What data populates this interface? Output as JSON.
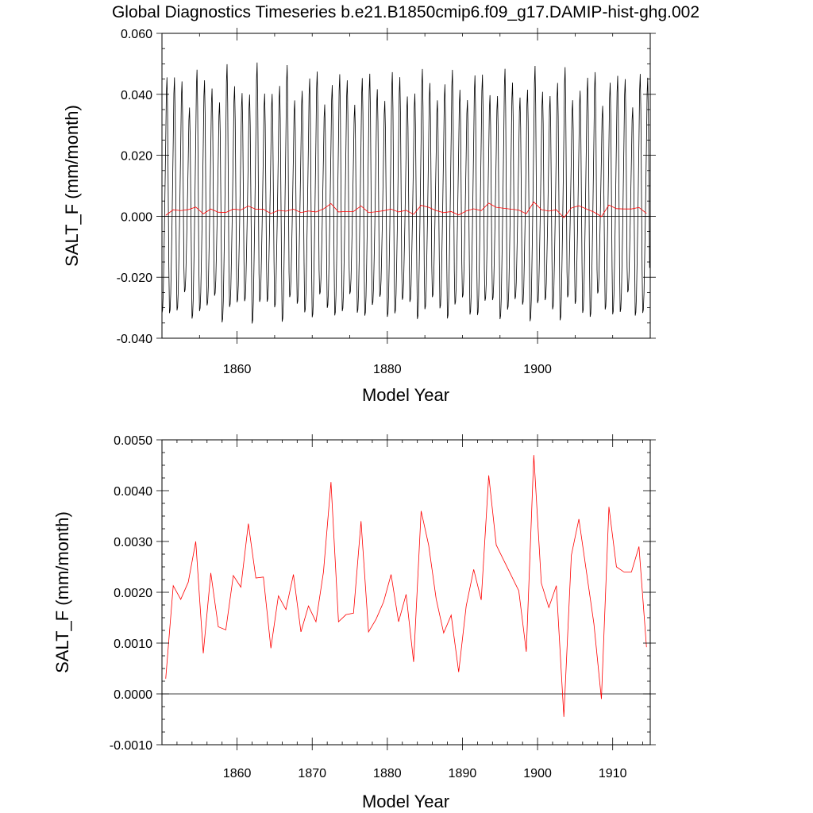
{
  "title": "Global Diagnostics Timeseries b.e21.B1850cmip6.f09_g17.DAMIP-hist-ghg.002",
  "colors": {
    "monthly": "#000000",
    "annual": "#ff0000",
    "zero_line": "#000000"
  },
  "chart_data": [
    {
      "type": "line",
      "xlabel": "Model Year",
      "ylabel": "SALT_F (mm/month)",
      "xlim": [
        1850,
        1915
      ],
      "ylim": [
        -0.04,
        0.06
      ],
      "xticks": [
        1860,
        1880,
        1900
      ],
      "xtick_labels": [
        "1860",
        "1880",
        "1900"
      ],
      "yticks": [
        -0.04,
        -0.02,
        0,
        0.02,
        0.04,
        0.06
      ],
      "ytick_labels": [
        "-0.040",
        "-0.020",
        "0.000",
        "0.020",
        "0.040",
        "0.060"
      ],
      "zero_line": 0,
      "series": [
        {
          "style": "monthly seasonal cycle (black)",
          "monthly_pattern": [
            -0.03,
            -0.029,
            -0.024,
            -0.014,
            -0.003,
            0.01,
            0.023,
            0.038,
            0.043,
            0.032,
            0.008,
            -0.016
          ],
          "start_year": 1850,
          "end_year": 1915
        },
        {
          "style": "annual mean (red)",
          "x": [
            1850.5,
            1851.5,
            1852.5,
            1853.5,
            1854.5,
            1855.5,
            1856.5,
            1857.5,
            1858.5,
            1859.5,
            1860.5,
            1861.5,
            1862.5,
            1863.5,
            1864.5,
            1865.5,
            1866.5,
            1867.5,
            1868.5,
            1869.5,
            1870.5,
            1871.5,
            1872.5,
            1873.5,
            1874.5,
            1875.5,
            1876.5,
            1877.5,
            1878.5,
            1879.5,
            1880.5,
            1881.5,
            1882.5,
            1883.5,
            1884.5,
            1885.5,
            1886.5,
            1887.5,
            1888.5,
            1889.5,
            1890.5,
            1891.5,
            1892.5,
            1893.5,
            1894.5,
            1897.5,
            1898.5,
            1899.5,
            1900.5,
            1901.5,
            1902.5,
            1903.5,
            1904.5,
            1905.5,
            1907.5,
            1908.5,
            1909.5,
            1910.5,
            1911.5,
            1912.5,
            1913.5,
            1914.5
          ],
          "values": [
            0.0003,
            0.00213,
            0.00186,
            0.0022,
            0.003,
            0.0008,
            0.00238,
            0.00132,
            0.00126,
            0.00233,
            0.0021,
            0.00335,
            0.00228,
            0.0023,
            0.0009,
            0.00193,
            0.00166,
            0.00235,
            0.00122,
            0.00173,
            0.00142,
            0.0024,
            0.00417,
            0.00142,
            0.00156,
            0.00159,
            0.0034,
            0.00122,
            0.00147,
            0.00181,
            0.00235,
            0.00142,
            0.00196,
            0.00063,
            0.0036,
            0.00293,
            0.00187,
            0.0012,
            0.00155,
            0.00043,
            0.00173,
            0.00245,
            0.00185,
            0.0043,
            0.00293,
            0.00203,
            0.00083,
            0.0047,
            0.00218,
            0.0017,
            0.00213,
            -0.00045,
            0.00273,
            0.00344,
            0.00138,
            -0.0001,
            0.00368,
            0.0025,
            0.0024,
            0.0024,
            0.0029,
            0.00092
          ]
        }
      ]
    },
    {
      "type": "line",
      "xlabel": "Model Year",
      "ylabel": "SALT_F (mm/month)",
      "xlim": [
        1850,
        1915
      ],
      "ylim": [
        -0.001,
        0.005
      ],
      "xticks": [
        1860,
        1870,
        1880,
        1890,
        1900,
        1910
      ],
      "xtick_labels": [
        "1860",
        "1870",
        "1880",
        "1890",
        "1900",
        "1910"
      ],
      "yticks": [
        -0.001,
        0,
        0.001,
        0.002,
        0.003,
        0.004,
        0.005
      ],
      "ytick_labels": [
        "-0.0010",
        "0.0000",
        "0.0010",
        "0.0020",
        "0.0030",
        "0.0040",
        "0.0050"
      ],
      "zero_line": 0,
      "series": [
        {
          "style": "annual mean (red)",
          "x": [
            1850.5,
            1851.5,
            1852.5,
            1853.5,
            1854.5,
            1855.5,
            1856.5,
            1857.5,
            1858.5,
            1859.5,
            1860.5,
            1861.5,
            1862.5,
            1863.5,
            1864.5,
            1865.5,
            1866.5,
            1867.5,
            1868.5,
            1869.5,
            1870.5,
            1871.5,
            1872.5,
            1873.5,
            1874.5,
            1875.5,
            1876.5,
            1877.5,
            1878.5,
            1879.5,
            1880.5,
            1881.5,
            1882.5,
            1883.5,
            1884.5,
            1885.5,
            1886.5,
            1887.5,
            1888.5,
            1889.5,
            1890.5,
            1891.5,
            1892.5,
            1893.5,
            1894.5,
            1897.5,
            1898.5,
            1899.5,
            1900.5,
            1901.5,
            1902.5,
            1903.5,
            1904.5,
            1905.5,
            1907.5,
            1908.5,
            1909.5,
            1910.5,
            1911.5,
            1912.5,
            1913.5,
            1914.5
          ],
          "values": [
            0.0003,
            0.00213,
            0.00186,
            0.0022,
            0.003,
            0.0008,
            0.00238,
            0.00132,
            0.00126,
            0.00233,
            0.0021,
            0.00335,
            0.00228,
            0.0023,
            0.0009,
            0.00193,
            0.00166,
            0.00235,
            0.00122,
            0.00173,
            0.00142,
            0.0024,
            0.00417,
            0.00142,
            0.00156,
            0.00159,
            0.0034,
            0.00122,
            0.00147,
            0.00181,
            0.00235,
            0.00142,
            0.00196,
            0.00063,
            0.0036,
            0.00293,
            0.00187,
            0.0012,
            0.00155,
            0.00043,
            0.00173,
            0.00245,
            0.00185,
            0.0043,
            0.00293,
            0.00203,
            0.00083,
            0.0047,
            0.00218,
            0.0017,
            0.00213,
            -0.00045,
            0.00273,
            0.00344,
            0.00138,
            -0.0001,
            0.00368,
            0.0025,
            0.0024,
            0.0024,
            0.0029,
            0.00092
          ]
        }
      ]
    }
  ]
}
